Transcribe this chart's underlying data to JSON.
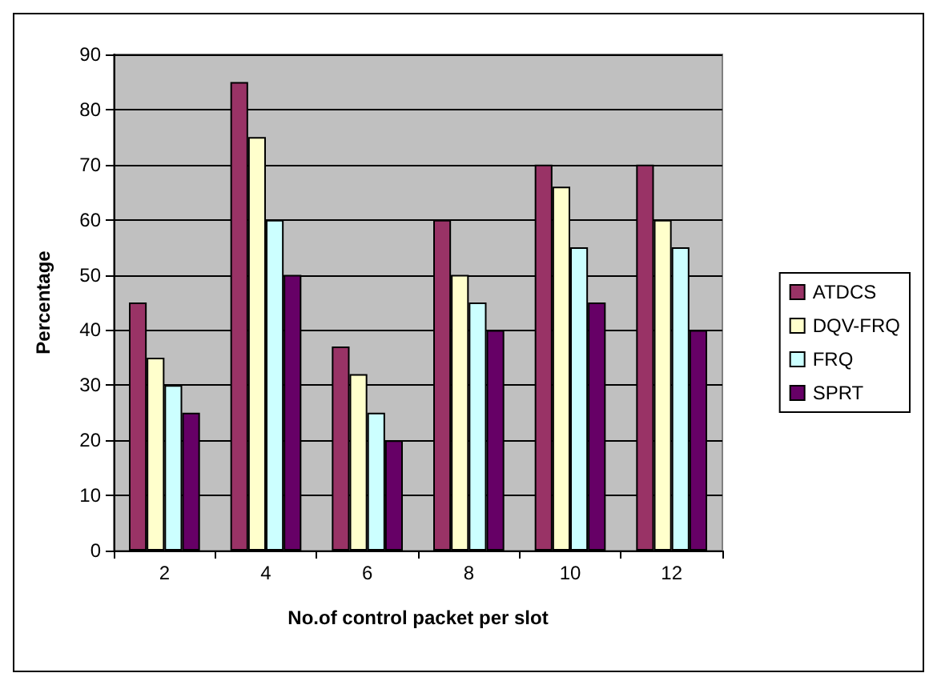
{
  "chart_data": {
    "type": "bar",
    "xlabel": "No.of control packet per slot",
    "ylabel": "Percentage",
    "categories": [
      "2",
      "4",
      "6",
      "8",
      "10",
      "12"
    ],
    "series": [
      {
        "name": "ATDCS",
        "color": "#993366",
        "values": [
          45,
          85,
          37,
          60,
          70,
          70
        ]
      },
      {
        "name": "DQV-FRQ",
        "color": "#ffffcc",
        "values": [
          35,
          75,
          32,
          50,
          66,
          60
        ]
      },
      {
        "name": "FRQ",
        "color": "#ccffff",
        "values": [
          30,
          60,
          25,
          45,
          55,
          55
        ]
      },
      {
        "name": "SPRT",
        "color": "#660066",
        "values": [
          25,
          50,
          20,
          40,
          45,
          40
        ]
      }
    ],
    "ylim": [
      0,
      90
    ],
    "yticks": [
      0,
      10,
      20,
      30,
      40,
      50,
      60,
      70,
      80,
      90
    ],
    "grid": "y",
    "legend": "right"
  }
}
